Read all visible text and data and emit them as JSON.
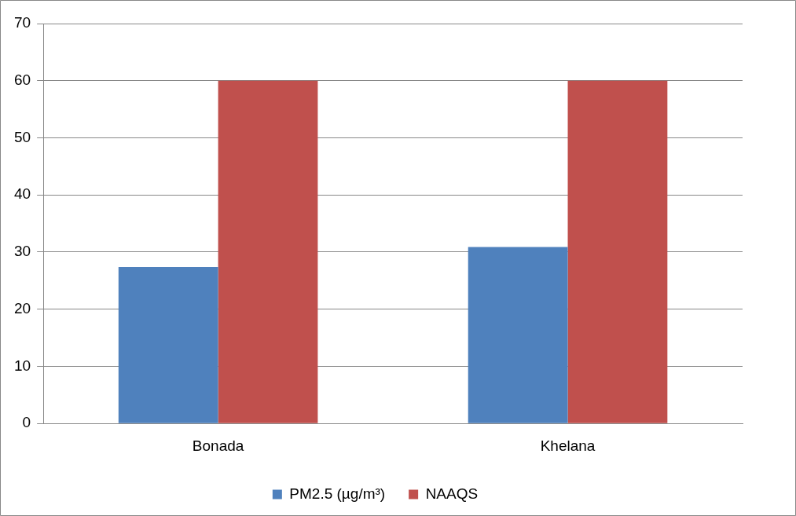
{
  "chart_data": {
    "type": "bar",
    "categories": [
      "Bonada",
      "Khelana"
    ],
    "series": [
      {
        "name": "PM2.5 (µg/m³)",
        "color": "#4f81bd",
        "values": [
          27.4,
          30.9
        ]
      },
      {
        "name": "NAAQS",
        "color": "#c0504d",
        "values": [
          60,
          60
        ]
      }
    ],
    "ylim": [
      0,
      70
    ],
    "yticks": [
      0,
      10,
      20,
      30,
      40,
      50,
      60,
      70
    ],
    "grid": "y",
    "legend": "bottom"
  }
}
